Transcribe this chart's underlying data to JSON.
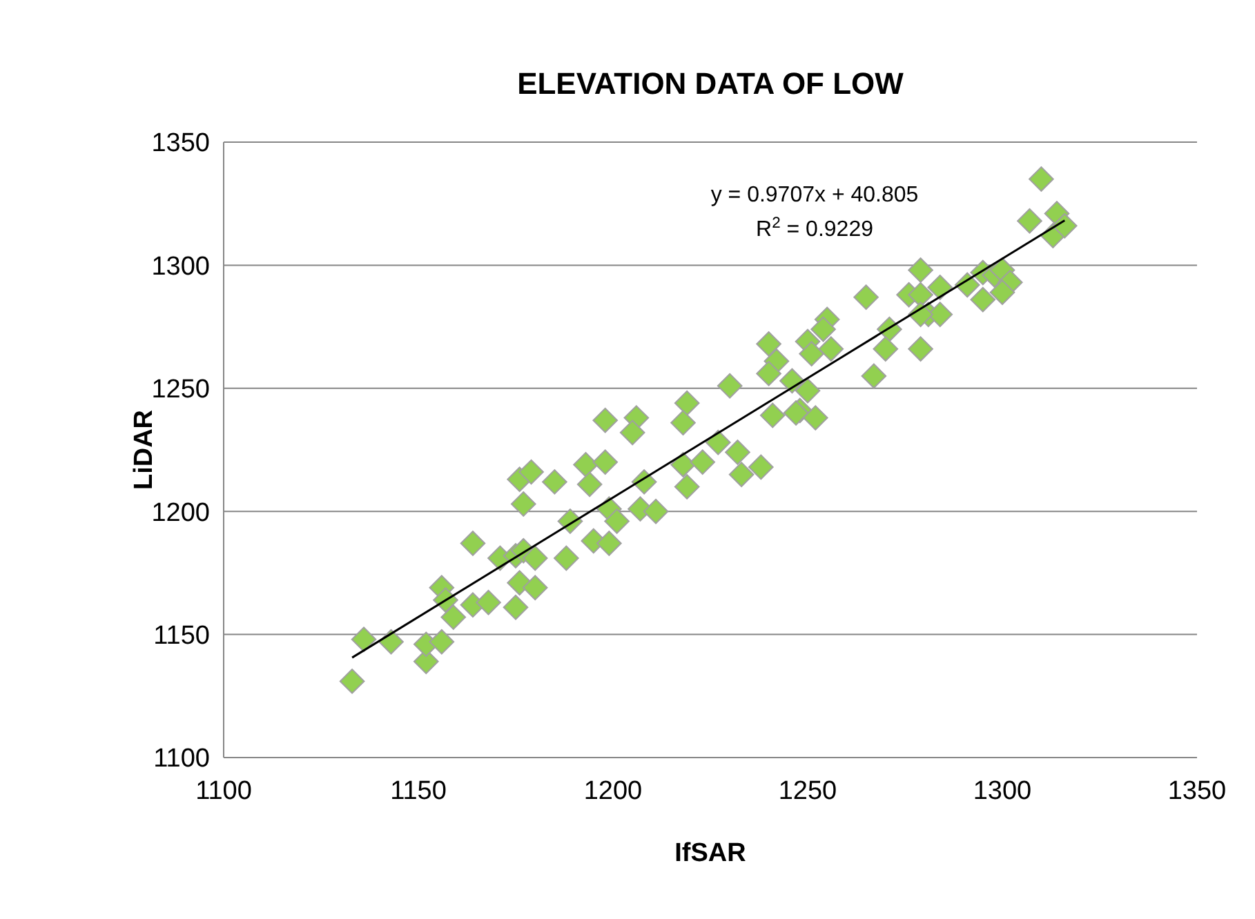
{
  "chart_data": {
    "type": "scatter",
    "title": "ELEVATION DATA OF LOW",
    "xlabel": "IfSAR",
    "ylabel": "LiDAR",
    "annotations": [
      "y = 0.9707x + 40.805",
      "R$^{2}$ = 0.9229"
    ],
    "xlim": [
      1100,
      1350
    ],
    "xticks": [
      1100,
      1150,
      1200,
      1250,
      1300,
      1350
    ],
    "ylim": [
      1100,
      1350
    ],
    "yticks": [
      1100,
      1150,
      1200,
      1250,
      1300,
      1350
    ],
    "grid": "y",
    "marker": "diamond",
    "series": [
      {
        "color": "#92d050",
        "x": [
          1133,
          1136,
          1143,
          1152,
          1152,
          1156,
          1156,
          1157,
          1159,
          1164,
          1164,
          1168,
          1171,
          1175,
          1177,
          1180,
          1176,
          1180,
          1175,
          1176,
          1179,
          1177,
          1185,
          1189,
          1188,
          1193,
          1194,
          1198,
          1198,
          1206,
          1205,
          1195,
          1199,
          1199,
          1201,
          1207,
          1208,
          1211,
          1219,
          1218,
          1218,
          1223,
          1219,
          1227,
          1232,
          1233,
          1230,
          1238,
          1310,
          1307,
          1314,
          1313,
          1316,
          1279,
          1265,
          1276,
          1279,
          1284,
          1281,
          1284,
          1279,
          1279,
          1291,
          1295,
          1298,
          1300,
          1302,
          1300,
          1295,
          1271,
          1270,
          1267,
          1255,
          1254,
          1256,
          1250,
          1251,
          1240,
          1242,
          1240,
          1246,
          1250,
          1248,
          1247,
          1252,
          1241
        ],
        "values": [
          1131,
          1148,
          1147,
          1139,
          1146,
          1147,
          1169,
          1164,
          1157,
          1187,
          1162,
          1163,
          1181,
          1182,
          1184,
          1181,
          1171,
          1169,
          1161,
          1213,
          1216,
          1203,
          1212,
          1196,
          1181,
          1219,
          1211,
          1220,
          1237,
          1238,
          1232,
          1188,
          1187,
          1201,
          1196,
          1201,
          1212,
          1200,
          1244,
          1236,
          1219,
          1220,
          1210,
          1228,
          1224,
          1215,
          1251,
          1218,
          1335,
          1318,
          1321,
          1312,
          1316,
          1298,
          1287,
          1288,
          1288,
          1291,
          1280,
          1280,
          1280,
          1266,
          1292,
          1297,
          1296,
          1298,
          1293,
          1289,
          1286,
          1274,
          1266,
          1255,
          1278,
          1274,
          1266,
          1269,
          1264,
          1268,
          1261,
          1256,
          1253,
          1249,
          1241,
          1240,
          1238,
          1239
        ]
      },
      {
        "type": "line",
        "color": "#000000",
        "marker": "none",
        "x": [
          1133,
          1316
        ],
        "values": [
          1140.6,
          1318.2
        ]
      }
    ]
  }
}
